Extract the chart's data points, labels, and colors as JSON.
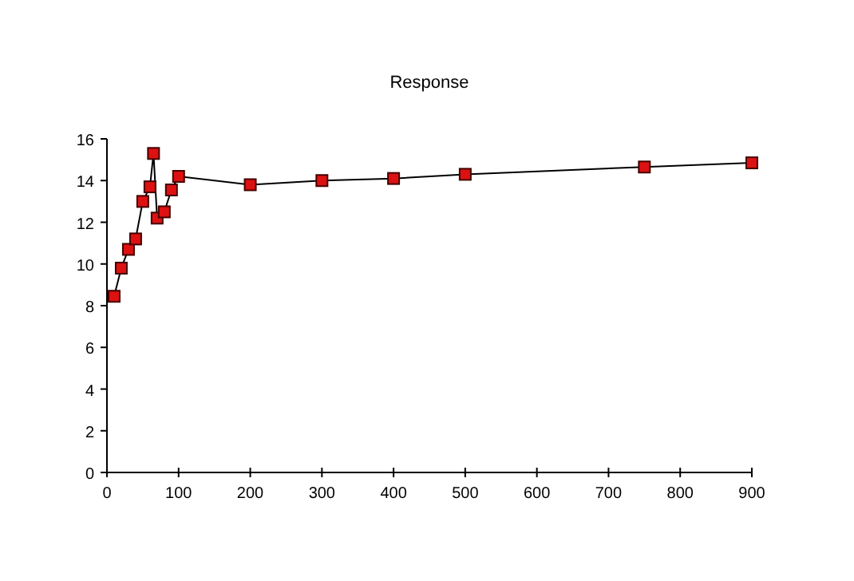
{
  "chart_data": {
    "type": "line",
    "title": "Response",
    "x": [
      10,
      20,
      30,
      40,
      50,
      60,
      65,
      70,
      80,
      90,
      100,
      200,
      300,
      400,
      500,
      750,
      900
    ],
    "series": [
      {
        "color": "#dd1111",
        "values": [
          8.45,
          9.8,
          10.7,
          11.2,
          13.0,
          13.7,
          15.3,
          12.2,
          12.5,
          13.55,
          14.2,
          13.8,
          14.0,
          14.1,
          14.3,
          14.65,
          14.85
        ]
      }
    ],
    "xlim": [
      0,
      900
    ],
    "xticks": [
      0,
      100,
      200,
      300,
      400,
      500,
      600,
      700,
      800,
      900
    ],
    "ylim": [
      0,
      16
    ],
    "yticks": [
      0,
      2,
      4,
      6,
      8,
      10,
      12,
      14,
      16
    ],
    "grid": false,
    "marker": "square",
    "line_style": "solid"
  }
}
